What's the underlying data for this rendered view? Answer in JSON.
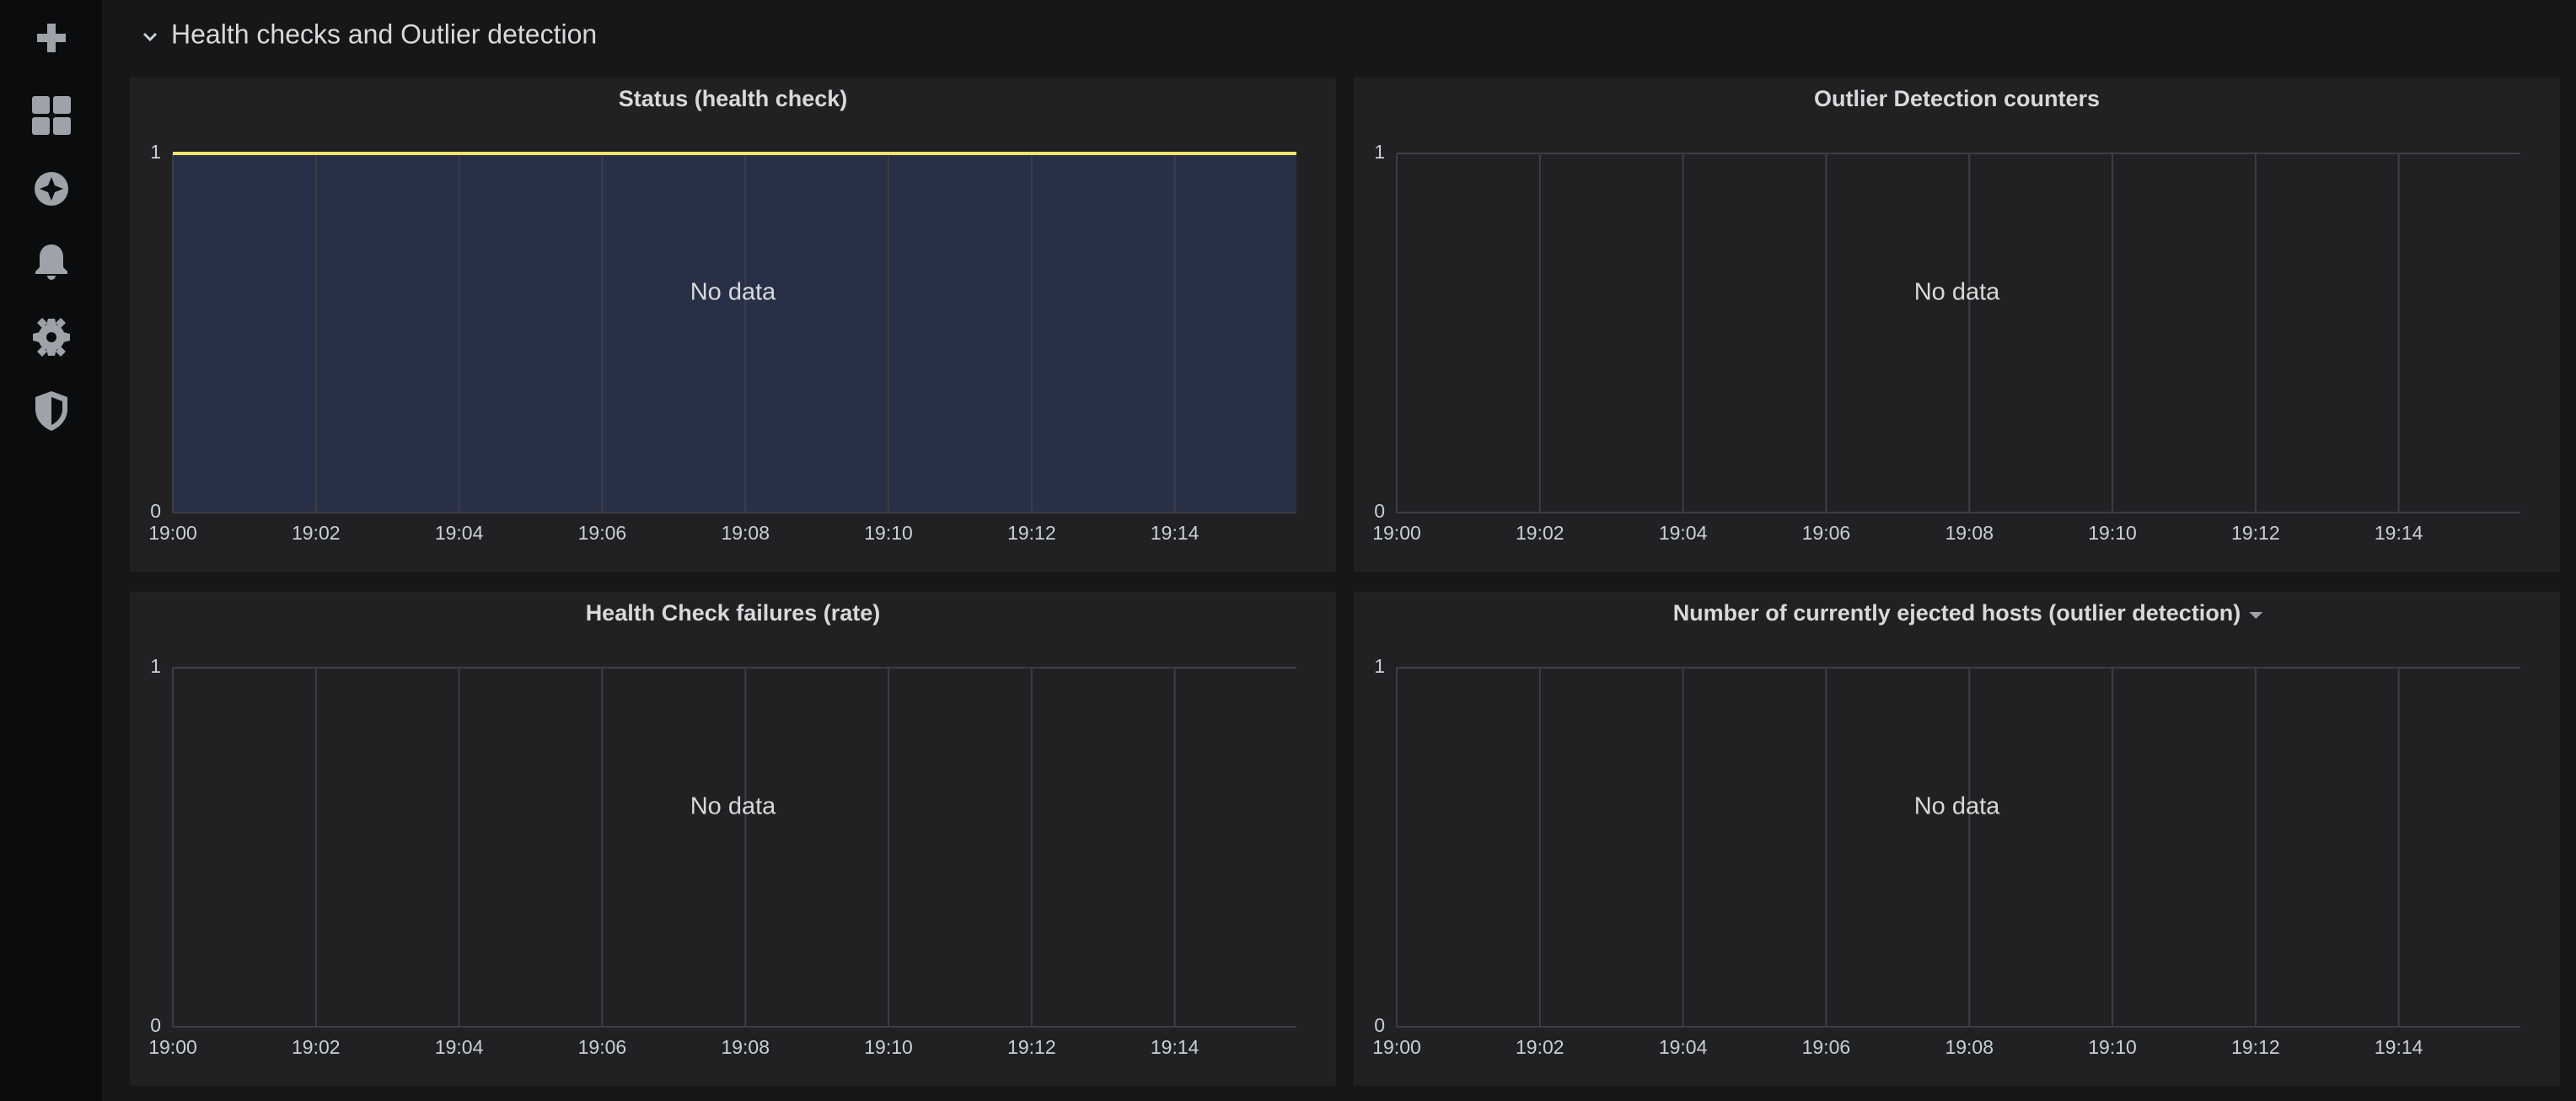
{
  "row_title": "Health checks and Outlier detection",
  "chart_data": [
    {
      "type": "line",
      "title": "Status (health check)",
      "no_data_text": "No data",
      "xlim": [
        1140,
        1155.7
      ],
      "xticks": [
        {
          "value": 1140,
          "label": "19:00"
        },
        {
          "value": 1142,
          "label": "19:02"
        },
        {
          "value": 1144,
          "label": "19:04"
        },
        {
          "value": 1146,
          "label": "19:06"
        },
        {
          "value": 1148,
          "label": "19:08"
        },
        {
          "value": 1150,
          "label": "19:10"
        },
        {
          "value": 1152,
          "label": "19:12"
        },
        {
          "value": 1154,
          "label": "19:14"
        }
      ],
      "ylim": [
        0,
        1
      ],
      "yticks": [
        0,
        1
      ],
      "grid": true,
      "series": [
        {
          "color": "#f2e36b",
          "fill_color": "#283048",
          "x": [
            1140,
            1155.7
          ],
          "values": [
            1,
            1
          ]
        }
      ]
    },
    {
      "type": "line",
      "title": "Outlier Detection counters",
      "no_data_text": "No data",
      "xlim": [
        1140,
        1155.7
      ],
      "xticks": [
        {
          "value": 1140,
          "label": "19:00"
        },
        {
          "value": 1142,
          "label": "19:02"
        },
        {
          "value": 1144,
          "label": "19:04"
        },
        {
          "value": 1146,
          "label": "19:06"
        },
        {
          "value": 1148,
          "label": "19:08"
        },
        {
          "value": 1150,
          "label": "19:10"
        },
        {
          "value": 1152,
          "label": "19:12"
        },
        {
          "value": 1154,
          "label": "19:14"
        }
      ],
      "ylim": [
        0,
        1
      ],
      "yticks": [
        0,
        1
      ],
      "grid": true,
      "series": []
    },
    {
      "type": "line",
      "title": "Health Check failures (rate)",
      "no_data_text": "No data",
      "xlim": [
        1140,
        1155.7
      ],
      "xticks": [
        {
          "value": 1140,
          "label": "19:00"
        },
        {
          "value": 1142,
          "label": "19:02"
        },
        {
          "value": 1144,
          "label": "19:04"
        },
        {
          "value": 1146,
          "label": "19:06"
        },
        {
          "value": 1148,
          "label": "19:08"
        },
        {
          "value": 1150,
          "label": "19:10"
        },
        {
          "value": 1152,
          "label": "19:12"
        },
        {
          "value": 1154,
          "label": "19:14"
        }
      ],
      "ylim": [
        0,
        1
      ],
      "yticks": [
        0,
        1
      ],
      "grid": true,
      "series": []
    },
    {
      "type": "line",
      "title": "Number of currently ejected hosts (outlier detection)",
      "no_data_text": "No data",
      "menu": true,
      "xlim": [
        1140,
        1155.7
      ],
      "xticks": [
        {
          "value": 1140,
          "label": "19:00"
        },
        {
          "value": 1142,
          "label": "19:02"
        },
        {
          "value": 1144,
          "label": "19:04"
        },
        {
          "value": 1146,
          "label": "19:06"
        },
        {
          "value": 1148,
          "label": "19:08"
        },
        {
          "value": 1150,
          "label": "19:10"
        },
        {
          "value": 1152,
          "label": "19:12"
        },
        {
          "value": 1154,
          "label": "19:14"
        }
      ],
      "ylim": [
        0,
        1
      ],
      "yticks": [
        0,
        1
      ],
      "grid": true,
      "series": []
    }
  ]
}
